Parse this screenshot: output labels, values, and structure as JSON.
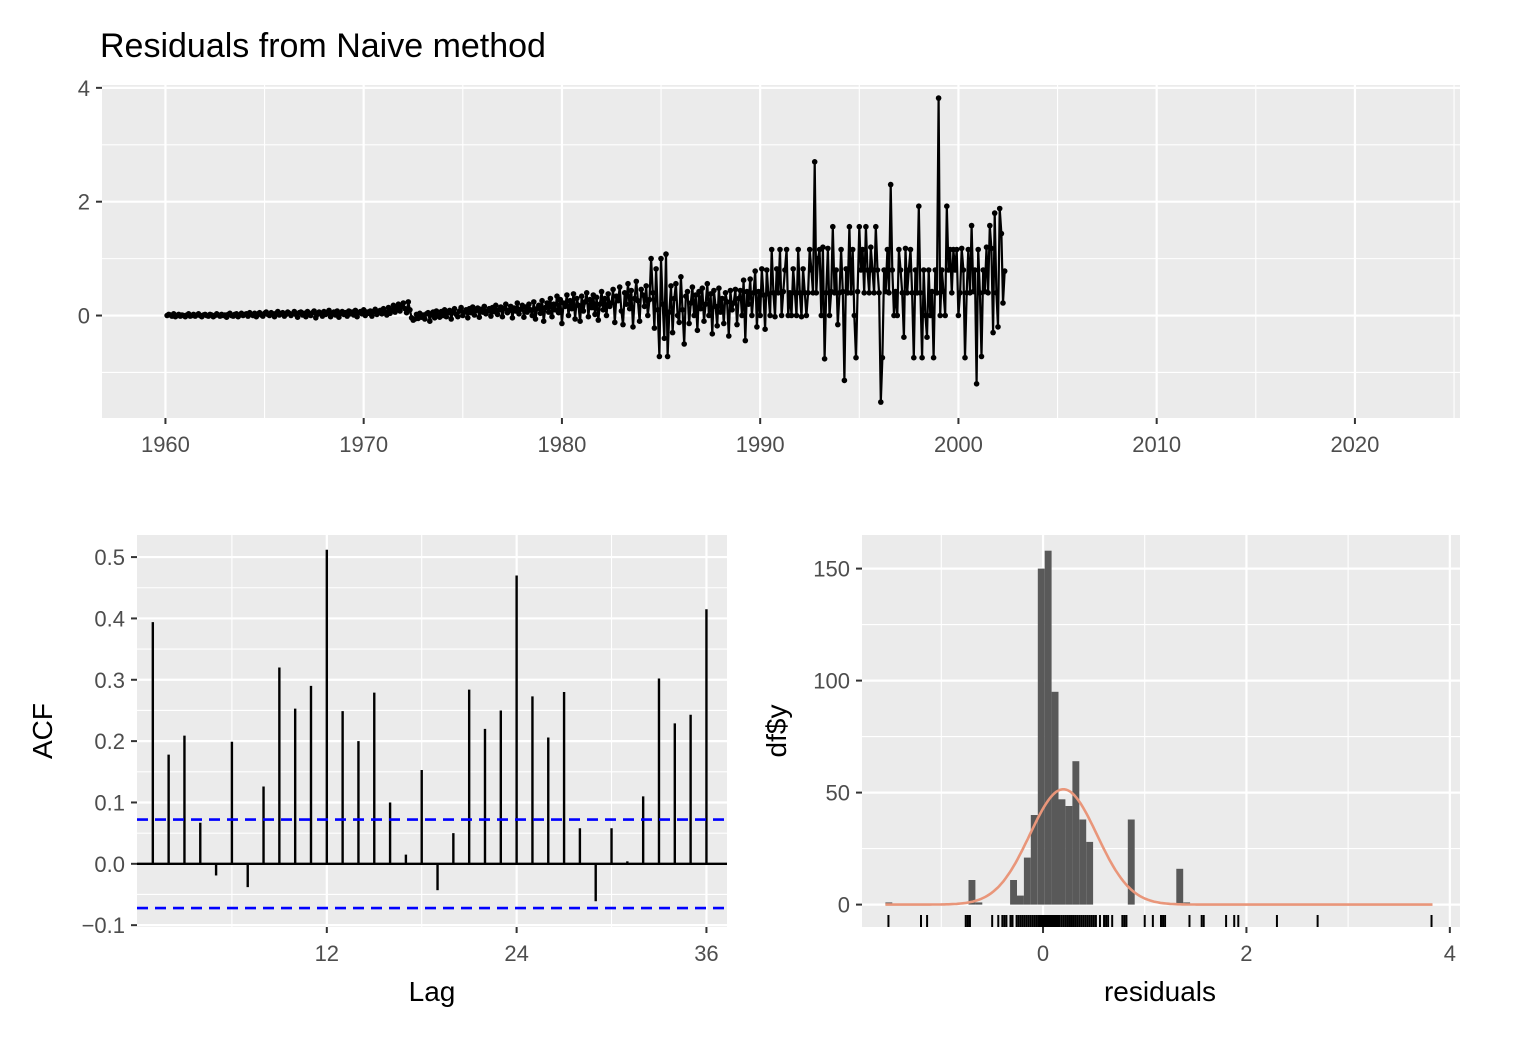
{
  "chart_data": [
    {
      "id": "residuals",
      "type": "line",
      "title": "Residuals from Naive method",
      "xlabel": "",
      "ylabel": "",
      "xlim": [
        1956.8,
        2025.3
      ],
      "ylim": [
        -1.8,
        4.05
      ],
      "xticks": [
        1960,
        1970,
        1980,
        1990,
        2000,
        2010,
        2020
      ],
      "xtick_labels": [
        "1960",
        "1970",
        "1980",
        "1990",
        "2000",
        "2010",
        "2020"
      ],
      "yticks": [
        0,
        2,
        4
      ],
      "ytick_labels": [
        "0",
        "2",
        "4"
      ],
      "grid": true,
      "color": "#000000",
      "x_start": 1960.0833,
      "x_step": 0.08333,
      "values": [
        0.0,
        0.02,
        0.01,
        -0.01,
        0.03,
        -0.02,
        0.0,
        0.02,
        -0.01,
        0.01,
        0.0,
        -0.02,
        0.01,
        0.03,
        -0.01,
        0.0,
        0.02,
        -0.01,
        0.01,
        0.03,
        0.0,
        -0.02,
        0.01,
        0.02,
        0.0,
        -0.01,
        0.02,
        0.01,
        -0.02,
        0.0,
        0.03,
        0.01,
        -0.01,
        0.02,
        0.0,
        0.01,
        -0.03,
        0.02,
        0.04,
        0.0,
        -0.01,
        0.02,
        0.03,
        -0.02,
        0.01,
        0.04,
        0.0,
        0.02,
        0.03,
        -0.01,
        0.05,
        0.02,
        0.0,
        0.04,
        -0.02,
        0.03,
        0.05,
        0.01,
        -0.01,
        0.04,
        0.06,
        0.02,
        0.0,
        0.05,
        0.03,
        -0.02,
        0.04,
        0.07,
        0.01,
        0.03,
        0.05,
        -0.01,
        0.02,
        0.06,
        0.04,
        0.0,
        0.03,
        0.07,
        0.02,
        -0.03,
        0.05,
        0.06,
        0.01,
        0.04,
        -0.02,
        0.07,
        0.03,
        0.0,
        0.05,
        0.08,
        -0.04,
        0.02,
        0.06,
        0.04,
        -0.01,
        0.07,
        0.02,
        0.05,
        0.09,
        -0.02,
        0.03,
        0.06,
        0.01,
        0.08,
        -0.03,
        0.04,
        0.07,
        0.02,
        0.05,
        -0.01,
        0.08,
        0.03,
        0.06,
        0.01,
        0.09,
        -0.02,
        0.05,
        0.07,
        0.03,
        0.1,
        0.0,
        0.06,
        0.04,
        0.08,
        -0.01,
        0.07,
        0.11,
        0.02,
        0.05,
        0.09,
        0.03,
        0.12,
        0.06,
        0.01,
        0.14,
        0.04,
        0.1,
        0.18,
        0.06,
        0.13,
        0.2,
        0.08,
        0.16,
        0.22,
        0.12,
        0.05,
        0.24,
        0.1,
        -0.04,
        -0.08,
        -0.06,
        0.02,
        -0.05,
        0.04,
        -0.03,
        0.01,
        -0.06,
        0.03,
        0.05,
        -0.1,
        0.02,
        0.06,
        -0.04,
        0.08,
        0.01,
        -0.03,
        0.07,
        0.0,
        0.1,
        -0.02,
        0.05,
        0.09,
        -0.06,
        0.06,
        0.12,
        0.02,
        -0.02,
        0.08,
        0.14,
        0.0,
        0.06,
        0.1,
        -0.04,
        0.12,
        0.05,
        0.15,
        0.01,
        0.09,
        0.13,
        -0.03,
        0.11,
        0.06,
        0.16,
        0.03,
        0.08,
        0.12,
        -0.01,
        0.14,
        0.07,
        0.18,
        0.02,
        0.1,
        0.15,
        -0.02,
        0.12,
        0.2,
        0.05,
        0.09,
        0.16,
        -0.04,
        0.13,
        0.08,
        0.22,
        0.03,
        0.11,
        0.18,
        -0.03,
        0.15,
        0.06,
        0.2,
        0.1,
        0.0,
        0.24,
        -0.06,
        0.12,
        0.18,
        0.04,
        0.26,
        -0.1,
        0.14,
        0.22,
        0.06,
        0.3,
        -0.02,
        0.2,
        0.1,
        0.34,
        0.05,
        0.28,
        -0.14,
        0.22,
        0.16,
        0.36,
        0.0,
        0.26,
        0.12,
        0.38,
        -0.06,
        0.3,
        0.18,
        -0.1,
        0.34,
        0.08,
        0.24,
        0.4,
        -0.02,
        0.28,
        0.14,
        0.36,
        0.02,
        0.32,
        -0.08,
        0.2,
        0.42,
        0.1,
        0.3,
        0.0,
        0.38,
        0.16,
        0.22,
        0.46,
        -0.12,
        0.34,
        0.26,
        0.5,
        0.08,
        -0.16,
        0.4,
        0.2,
        0.56,
        0.12,
        0.44,
        -0.2,
        0.3,
        0.6,
        0.26,
        -0.1,
        0.46,
        0.36,
        0.16,
        0.52,
        0.0,
        0.28,
        1.0,
        0.4,
        -0.22,
        0.82,
        0.1,
        -0.72,
        1.0,
        0.2,
        -0.4,
        1.08,
        -0.72,
        0.06,
        0.52,
        -0.3,
        0.3,
        0.56,
        0.0,
        -0.12,
        0.68,
        0.1,
        -0.5,
        0.34,
        0.42,
        -0.14,
        0.22,
        0.5,
        0.0,
        0.36,
        -0.26,
        0.42,
        0.12,
        0.48,
        -0.1,
        0.2,
        0.56,
        0.0,
        0.38,
        -0.32,
        0.44,
        0.16,
        -0.18,
        0.48,
        0.06,
        0.3,
        -0.14,
        0.4,
        0.24,
        -0.36,
        0.44,
        0.1,
        0.22,
        0.46,
        -0.16,
        0.3,
        0.44,
        0.0,
        0.62,
        -0.44,
        0.42,
        0.2,
        0.64,
        0.0,
        0.4,
        0.78,
        -0.2,
        0.42,
        0.0,
        0.82,
        0.36,
        -0.24,
        0.8,
        0.38,
        0.0,
        1.16,
        0.4,
        -0.02,
        0.82,
        0.4,
        1.16,
        0.0,
        0.42,
        0.8,
        1.16,
        0.0,
        0.4,
        0.0,
        0.82,
        0.4,
        0.0,
        1.16,
        0.4,
        -0.02,
        0.82,
        0.4,
        0.0,
        0.4,
        1.16,
        0.8,
        0.4,
        2.7,
        0.4,
        1.0,
        1.16,
        0.0,
        1.2,
        -0.76,
        0.4,
        1.18,
        0.0,
        0.42,
        1.56,
        0.4,
        0.8,
        -0.16,
        0.4,
        1.16,
        0.42,
        -1.14,
        0.82,
        0.4,
        1.56,
        0.4,
        1.16,
        0.0,
        -0.74,
        0.42,
        1.56,
        0.8,
        1.16,
        0.4,
        1.56,
        0.8,
        0.4,
        1.2,
        0.8,
        0.4,
        1.56,
        0.8,
        0.4,
        -1.52,
        -0.74,
        0.8,
        0.42,
        1.16,
        0.4,
        2.3,
        0.8,
        0.0,
        0.42,
        0.0,
        1.16,
        0.8,
        0.4,
        -0.38,
        1.18,
        0.4,
        0.8,
        1.16,
        0.4,
        -0.74,
        0.8,
        0.4,
        1.92,
        0.4,
        -0.74,
        0.8,
        0.0,
        -0.38,
        0.8,
        0.0,
        0.42,
        -0.74,
        0.8,
        0.4,
        3.82,
        0.0,
        0.8,
        0.42,
        0.0,
        1.92,
        0.8,
        1.16,
        0.4,
        1.16,
        0.8,
        1.16,
        0.0,
        0.4,
        1.18,
        0.8,
        -0.74,
        0.4,
        1.16,
        0.4,
        1.58,
        0.42,
        0.8,
        -1.2,
        1.16,
        0.4,
        -0.72,
        0.8,
        0.42,
        1.2,
        0.4,
        1.58,
        1.18,
        -0.3,
        1.8,
        0.4,
        -0.2,
        1.88,
        1.44,
        0.22,
        0.78
      ]
    },
    {
      "id": "acf",
      "type": "bar",
      "xlabel": "Lag",
      "ylabel": "ACF",
      "xlim": [
        0.0,
        37.3
      ],
      "ylim": [
        -0.103,
        0.536
      ],
      "xticks": [
        12,
        24,
        36
      ],
      "xtick_labels": [
        "12",
        "24",
        "36"
      ],
      "yticks": [
        -0.1,
        0.0,
        0.1,
        0.2,
        0.3,
        0.4,
        0.5
      ],
      "ytick_labels": [
        "−0.1",
        "0.0",
        "0.1",
        "0.2",
        "0.3",
        "0.4",
        "0.5"
      ],
      "grid": true,
      "lags": [
        1,
        2,
        3,
        4,
        5,
        6,
        7,
        8,
        9,
        10,
        11,
        12,
        13,
        14,
        15,
        16,
        17,
        18,
        19,
        20,
        21,
        22,
        23,
        24,
        25,
        26,
        27,
        28,
        29,
        30,
        31,
        32,
        33,
        34,
        35,
        36
      ],
      "values": [
        0.394,
        0.178,
        0.209,
        0.067,
        -0.019,
        0.199,
        -0.038,
        0.126,
        0.32,
        0.253,
        0.29,
        0.512,
        0.249,
        0.2,
        0.279,
        0.1,
        0.015,
        0.153,
        -0.043,
        0.05,
        0.284,
        0.22,
        0.25,
        0.47,
        0.273,
        0.206,
        0.28,
        0.058,
        -0.061,
        0.058,
        0.004,
        0.11,
        0.302,
        0.229,
        0.243,
        0.415
      ],
      "confidence_bounds": [
        0.0722,
        -0.0722
      ],
      "bound_color": "#0000ff"
    },
    {
      "id": "histogram",
      "type": "histogram",
      "xlabel": "residuals",
      "ylabel": "df$y",
      "xlim": [
        -1.78,
        4.1
      ],
      "ylim": [
        -10,
        165
      ],
      "xticks": [
        0,
        2,
        4
      ],
      "xtick_labels": [
        "0",
        "2",
        "4"
      ],
      "yticks": [
        0,
        50,
        100,
        150
      ],
      "ytick_labels": [
        "0",
        "50",
        "100",
        "150"
      ],
      "grid": true,
      "bin_width": 0.0681,
      "bins_start": -1.55,
      "counts": [
        1,
        0,
        0,
        0,
        0,
        0,
        0,
        0,
        0,
        0,
        0,
        0,
        11,
        1,
        0,
        0,
        0,
        0,
        11,
        4,
        21,
        40,
        150,
        158,
        95,
        47,
        44,
        64,
        38,
        28,
        0,
        0,
        0,
        0,
        0,
        38,
        0,
        0,
        0,
        0,
        0,
        0,
        16,
        1,
        0,
        0,
        0,
        0,
        0,
        0,
        0,
        0,
        0,
        0,
        0,
        0,
        0,
        0
      ],
      "bar_color": "#595959",
      "density_curve": {
        "mean": 0.2,
        "sd": 0.33,
        "peak": 51.5,
        "color": "#e9967a"
      },
      "rug": [
        -1.52,
        -1.2,
        -1.14,
        -0.76,
        -0.74,
        -0.74,
        -0.72,
        -0.72,
        -0.5,
        -0.44,
        -0.4,
        -0.38,
        -0.36,
        -0.32,
        -0.3,
        -0.26,
        -0.24,
        -0.22,
        -0.2,
        -0.18,
        -0.16,
        -0.14,
        -0.12,
        -0.1,
        -0.08,
        -0.06,
        -0.04,
        -0.03,
        -0.02,
        -0.01,
        0.0,
        0.01,
        0.02,
        0.03,
        0.04,
        0.05,
        0.06,
        0.07,
        0.08,
        0.09,
        0.1,
        0.11,
        0.12,
        0.13,
        0.14,
        0.15,
        0.16,
        0.18,
        0.2,
        0.22,
        0.24,
        0.26,
        0.28,
        0.3,
        0.32,
        0.34,
        0.36,
        0.38,
        0.4,
        0.42,
        0.44,
        0.46,
        0.48,
        0.5,
        0.52,
        0.56,
        0.6,
        0.62,
        0.64,
        0.68,
        0.78,
        0.8,
        0.82,
        1.0,
        1.08,
        1.16,
        1.18,
        1.2,
        1.44,
        1.56,
        1.58,
        1.8,
        1.88,
        1.92,
        2.3,
        2.7,
        3.82
      ]
    }
  ]
}
